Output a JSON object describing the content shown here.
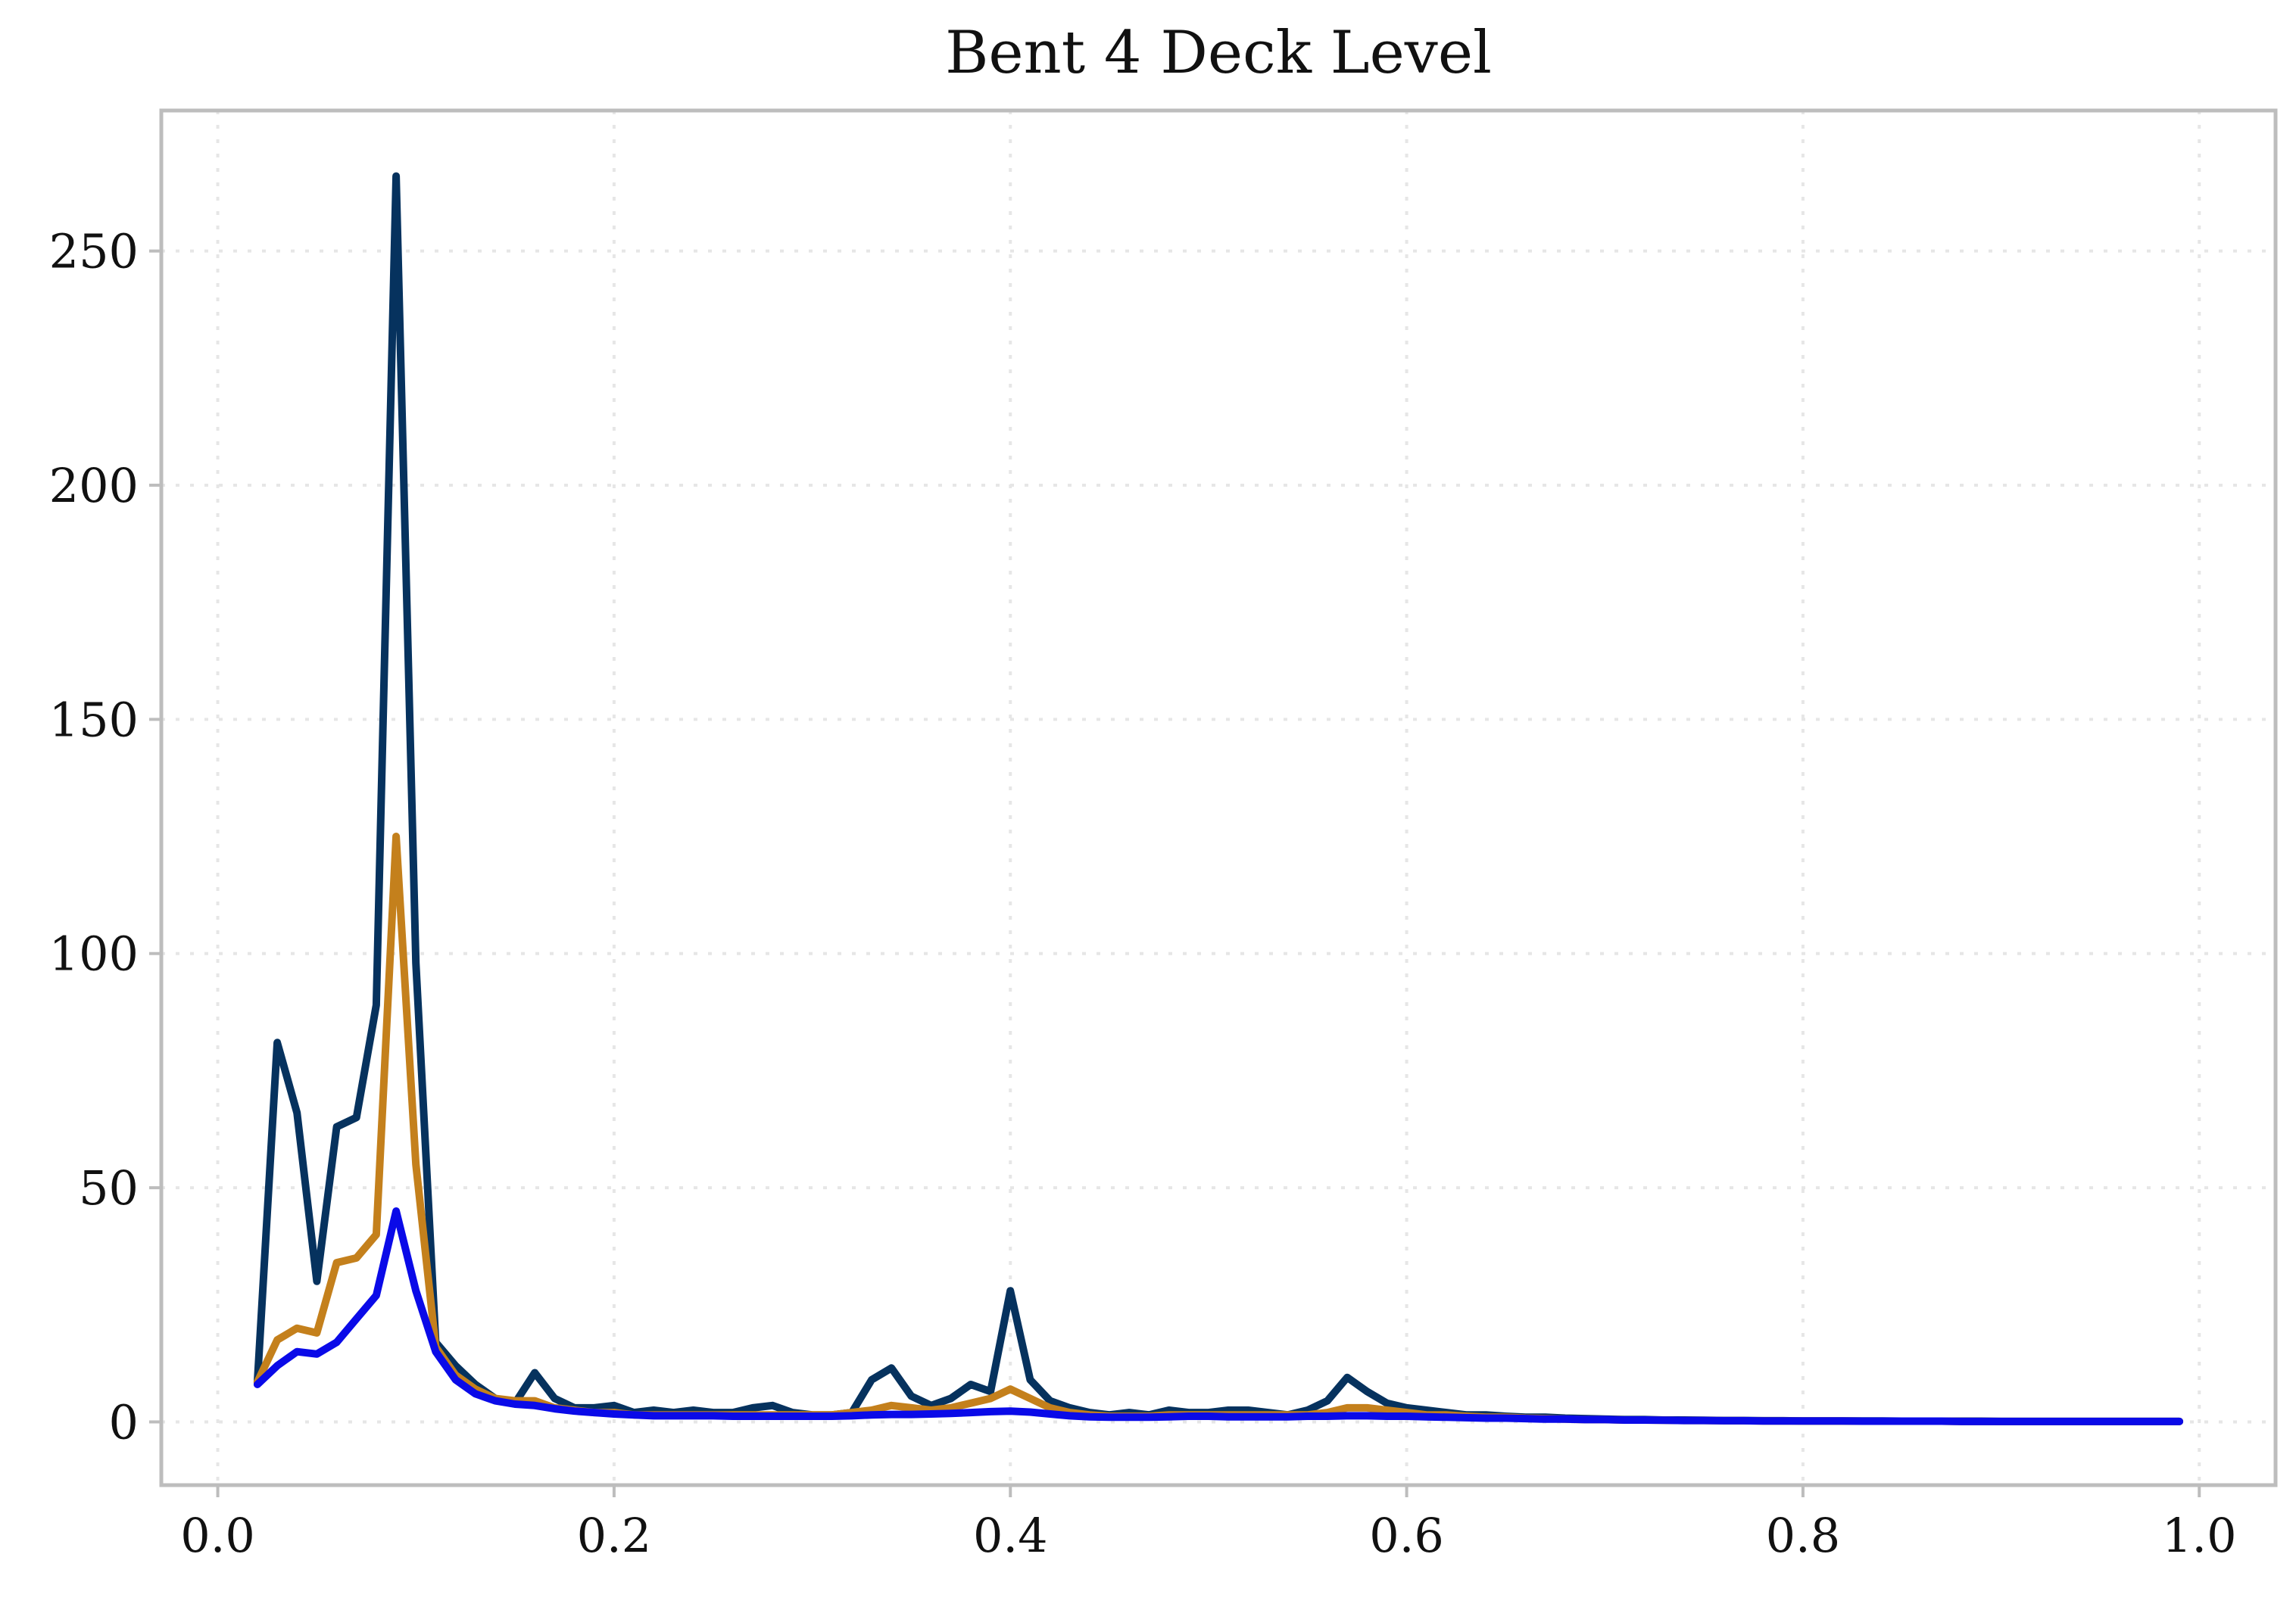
{
  "chart_data": {
    "type": "line",
    "title": "Bent 4 Deck Level",
    "xlabel": "",
    "ylabel": "",
    "xlim": [
      -0.0285,
      1.0385
    ],
    "ylim": [
      -13.5,
      280
    ],
    "x_ticks": [
      0.0,
      0.2,
      0.4,
      0.6,
      0.8,
      1.0
    ],
    "x_tick_labels": [
      "0.0",
      "0.2",
      "0.4",
      "0.6",
      "0.8",
      "1.0"
    ],
    "y_ticks": [
      0,
      50,
      100,
      150,
      200,
      250
    ],
    "y_tick_labels": [
      "0",
      "50",
      "100",
      "150",
      "200",
      "250"
    ],
    "grid": true,
    "legend": "none",
    "x": [
      0.02,
      0.03,
      0.04,
      0.05,
      0.06,
      0.07,
      0.08,
      0.09,
      0.1,
      0.11,
      0.12,
      0.13,
      0.14,
      0.15,
      0.16,
      0.17,
      0.18,
      0.19,
      0.2,
      0.21,
      0.22,
      0.23,
      0.24,
      0.25,
      0.26,
      0.27,
      0.28,
      0.29,
      0.3,
      0.31,
      0.32,
      0.33,
      0.34,
      0.35,
      0.36,
      0.37,
      0.38,
      0.39,
      0.4,
      0.41,
      0.42,
      0.43,
      0.44,
      0.45,
      0.46,
      0.47,
      0.48,
      0.49,
      0.5,
      0.51,
      0.52,
      0.53,
      0.54,
      0.55,
      0.56,
      0.57,
      0.58,
      0.59,
      0.6,
      0.61,
      0.62,
      0.63,
      0.64,
      0.65,
      0.66,
      0.67,
      0.68,
      0.69,
      0.7,
      0.71,
      0.72,
      0.73,
      0.74,
      0.75,
      0.76,
      0.77,
      0.78,
      0.79,
      0.8,
      0.81,
      0.82,
      0.83,
      0.84,
      0.85,
      0.86,
      0.87,
      0.88,
      0.89,
      0.9,
      0.91,
      0.92,
      0.93,
      0.94,
      0.95,
      0.96,
      0.97,
      0.98,
      0.99
    ],
    "series": [
      {
        "color": "#06325e",
        "values": [
          8.5,
          81,
          66,
          30,
          63,
          65,
          89,
          266,
          98,
          17,
          12,
          8,
          5,
          4,
          10.5,
          5,
          3,
          3,
          3.5,
          2,
          2.5,
          2,
          2.5,
          2,
          2,
          3,
          3.5,
          2,
          1.5,
          1.5,
          2,
          9,
          11.5,
          5.5,
          3.5,
          5,
          8,
          6.5,
          28,
          9,
          4.5,
          3,
          2,
          1.5,
          2,
          1.5,
          2.5,
          2,
          2,
          2.5,
          2.5,
          2,
          1.5,
          2.5,
          4.5,
          9.5,
          6.5,
          4,
          3,
          2.5,
          2,
          1.5,
          1.5,
          1.2,
          1,
          1,
          0.8,
          0.7,
          0.6,
          0.5,
          0.5,
          0.4,
          0.4,
          0.35,
          0.3,
          0.3,
          0.25,
          0.25,
          0.2,
          0.2,
          0.2,
          0.2,
          0.2,
          0.15,
          0.15,
          0.15,
          0.15,
          0.15,
          0.1,
          0.1,
          0.1,
          0.1,
          0.1,
          0.1,
          0.1,
          0.1,
          0.1,
          0.1
        ]
      },
      {
        "color": "#c4801c",
        "values": [
          8.5,
          17.5,
          20,
          19,
          34,
          35,
          40,
          125,
          55,
          16,
          10,
          7,
          5,
          4.5,
          4.5,
          3,
          2.5,
          2,
          2,
          1.5,
          1.5,
          1.5,
          1.5,
          1.5,
          1.5,
          1.5,
          1.5,
          1.5,
          1.5,
          1.5,
          2,
          2.5,
          3.5,
          3,
          2.5,
          3,
          4,
          5,
          7,
          5,
          3,
          2,
          1.5,
          1.2,
          1.2,
          1.2,
          1.5,
          1.5,
          1.5,
          1.5,
          1.5,
          1.5,
          1.5,
          1.5,
          2,
          3,
          3,
          2.5,
          2,
          1.5,
          1.5,
          1.2,
          1,
          1,
          0.8,
          0.7,
          0.6,
          0.5,
          0.5,
          0.4,
          0.4,
          0.35,
          0.3,
          0.3,
          0.25,
          0.25,
          0.2,
          0.2,
          0.2,
          0.2,
          0.2,
          0.15,
          0.15,
          0.15,
          0.15,
          0.15,
          0.1,
          0.1,
          0.1,
          0.1,
          0.1,
          0.1,
          0.1,
          0.1,
          0.1,
          0.1,
          0.1,
          0.1
        ]
      },
      {
        "color": "#0a0ae8",
        "values": [
          8,
          12,
          15,
          14.5,
          17,
          22,
          27,
          45,
          28,
          15,
          9,
          6,
          4.5,
          3.8,
          3.5,
          2.8,
          2.3,
          2,
          1.7,
          1.5,
          1.3,
          1.3,
          1.3,
          1.3,
          1.2,
          1.2,
          1.2,
          1.2,
          1.2,
          1.2,
          1.3,
          1.5,
          1.6,
          1.6,
          1.7,
          1.8,
          2,
          2.2,
          2.3,
          2.1,
          1.7,
          1.3,
          1.1,
          1,
          1,
          1,
          1.1,
          1.2,
          1.2,
          1.1,
          1.1,
          1.1,
          1.1,
          1.2,
          1.2,
          1.3,
          1.3,
          1.2,
          1.2,
          1.1,
          1,
          0.9,
          0.8,
          0.8,
          0.7,
          0.6,
          0.6,
          0.5,
          0.5,
          0.4,
          0.4,
          0.35,
          0.3,
          0.3,
          0.25,
          0.25,
          0.2,
          0.2,
          0.2,
          0.2,
          0.2,
          0.15,
          0.15,
          0.15,
          0.15,
          0.15,
          0.1,
          0.1,
          0.1,
          0.1,
          0.1,
          0.1,
          0.1,
          0.1,
          0.1,
          0.1,
          0.1,
          0.1
        ]
      }
    ]
  }
}
